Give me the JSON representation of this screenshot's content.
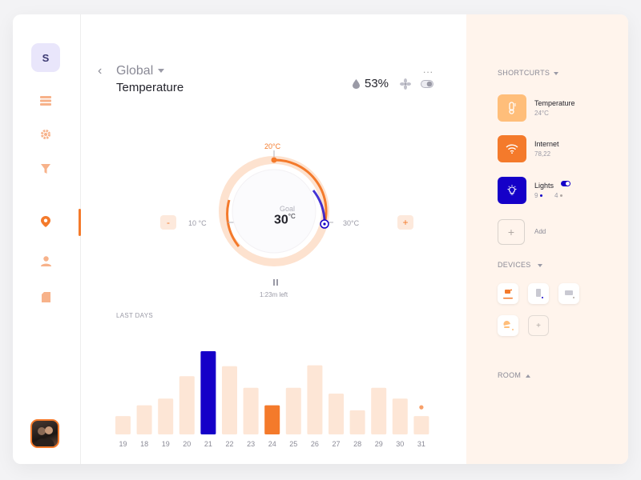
{
  "sidebar": {
    "logo_letter": "S",
    "items": [
      {
        "icon": "menu-icon"
      },
      {
        "icon": "gear-icon"
      },
      {
        "icon": "filter-icon"
      },
      {
        "icon": "location-pin-icon",
        "active": true
      },
      {
        "icon": "user-icon"
      },
      {
        "icon": "document-icon"
      }
    ]
  },
  "header": {
    "breadcrumb": "Global",
    "title": "Temperature",
    "humidity": "53%",
    "more": "..."
  },
  "thermostat": {
    "goal_label": "Goal",
    "goal_value": "30",
    "goal_unit": "°C",
    "min_label": "10 °C",
    "max_label": "30°C",
    "top_label": "20°C",
    "time_left": "1:23m left",
    "minus": "-",
    "plus": "+"
  },
  "last_days": {
    "label": "LAST DAYS"
  },
  "chart_data": {
    "type": "bar",
    "categories": [
      "19",
      "18",
      "19",
      "20",
      "21",
      "22",
      "23",
      "24",
      "25",
      "26",
      "27",
      "28",
      "29",
      "30",
      "31"
    ],
    "values": [
      22,
      35,
      43,
      70,
      100,
      82,
      56,
      35,
      56,
      83,
      49,
      29,
      56,
      43,
      22
    ],
    "highlight": {
      "21": "#1500c8",
      "24": "#f47a2b"
    },
    "ylim": [
      0,
      100
    ]
  },
  "shortcuts": {
    "heading": "SHORTCURTS",
    "items": [
      {
        "name": "Temperature",
        "value": "24°C",
        "color": "#ffbe7a",
        "icon": "thermometer-icon"
      },
      {
        "name": "Internet",
        "value": "78,22",
        "color": "#f47a2b",
        "icon": "wifi-icon"
      },
      {
        "name": "Lights",
        "value_a": "9",
        "value_b": "4",
        "color": "#1500c8",
        "icon": "lightbulb-icon"
      }
    ],
    "add_label": "Add",
    "add_symbol": "+"
  },
  "devices": {
    "heading": "DEVICES",
    "add_symbol": "+"
  },
  "room": {
    "heading": "ROOM"
  },
  "colors": {
    "accent": "#f47a2b",
    "primary": "#1500c8",
    "light_bar": "#fde6d6"
  }
}
